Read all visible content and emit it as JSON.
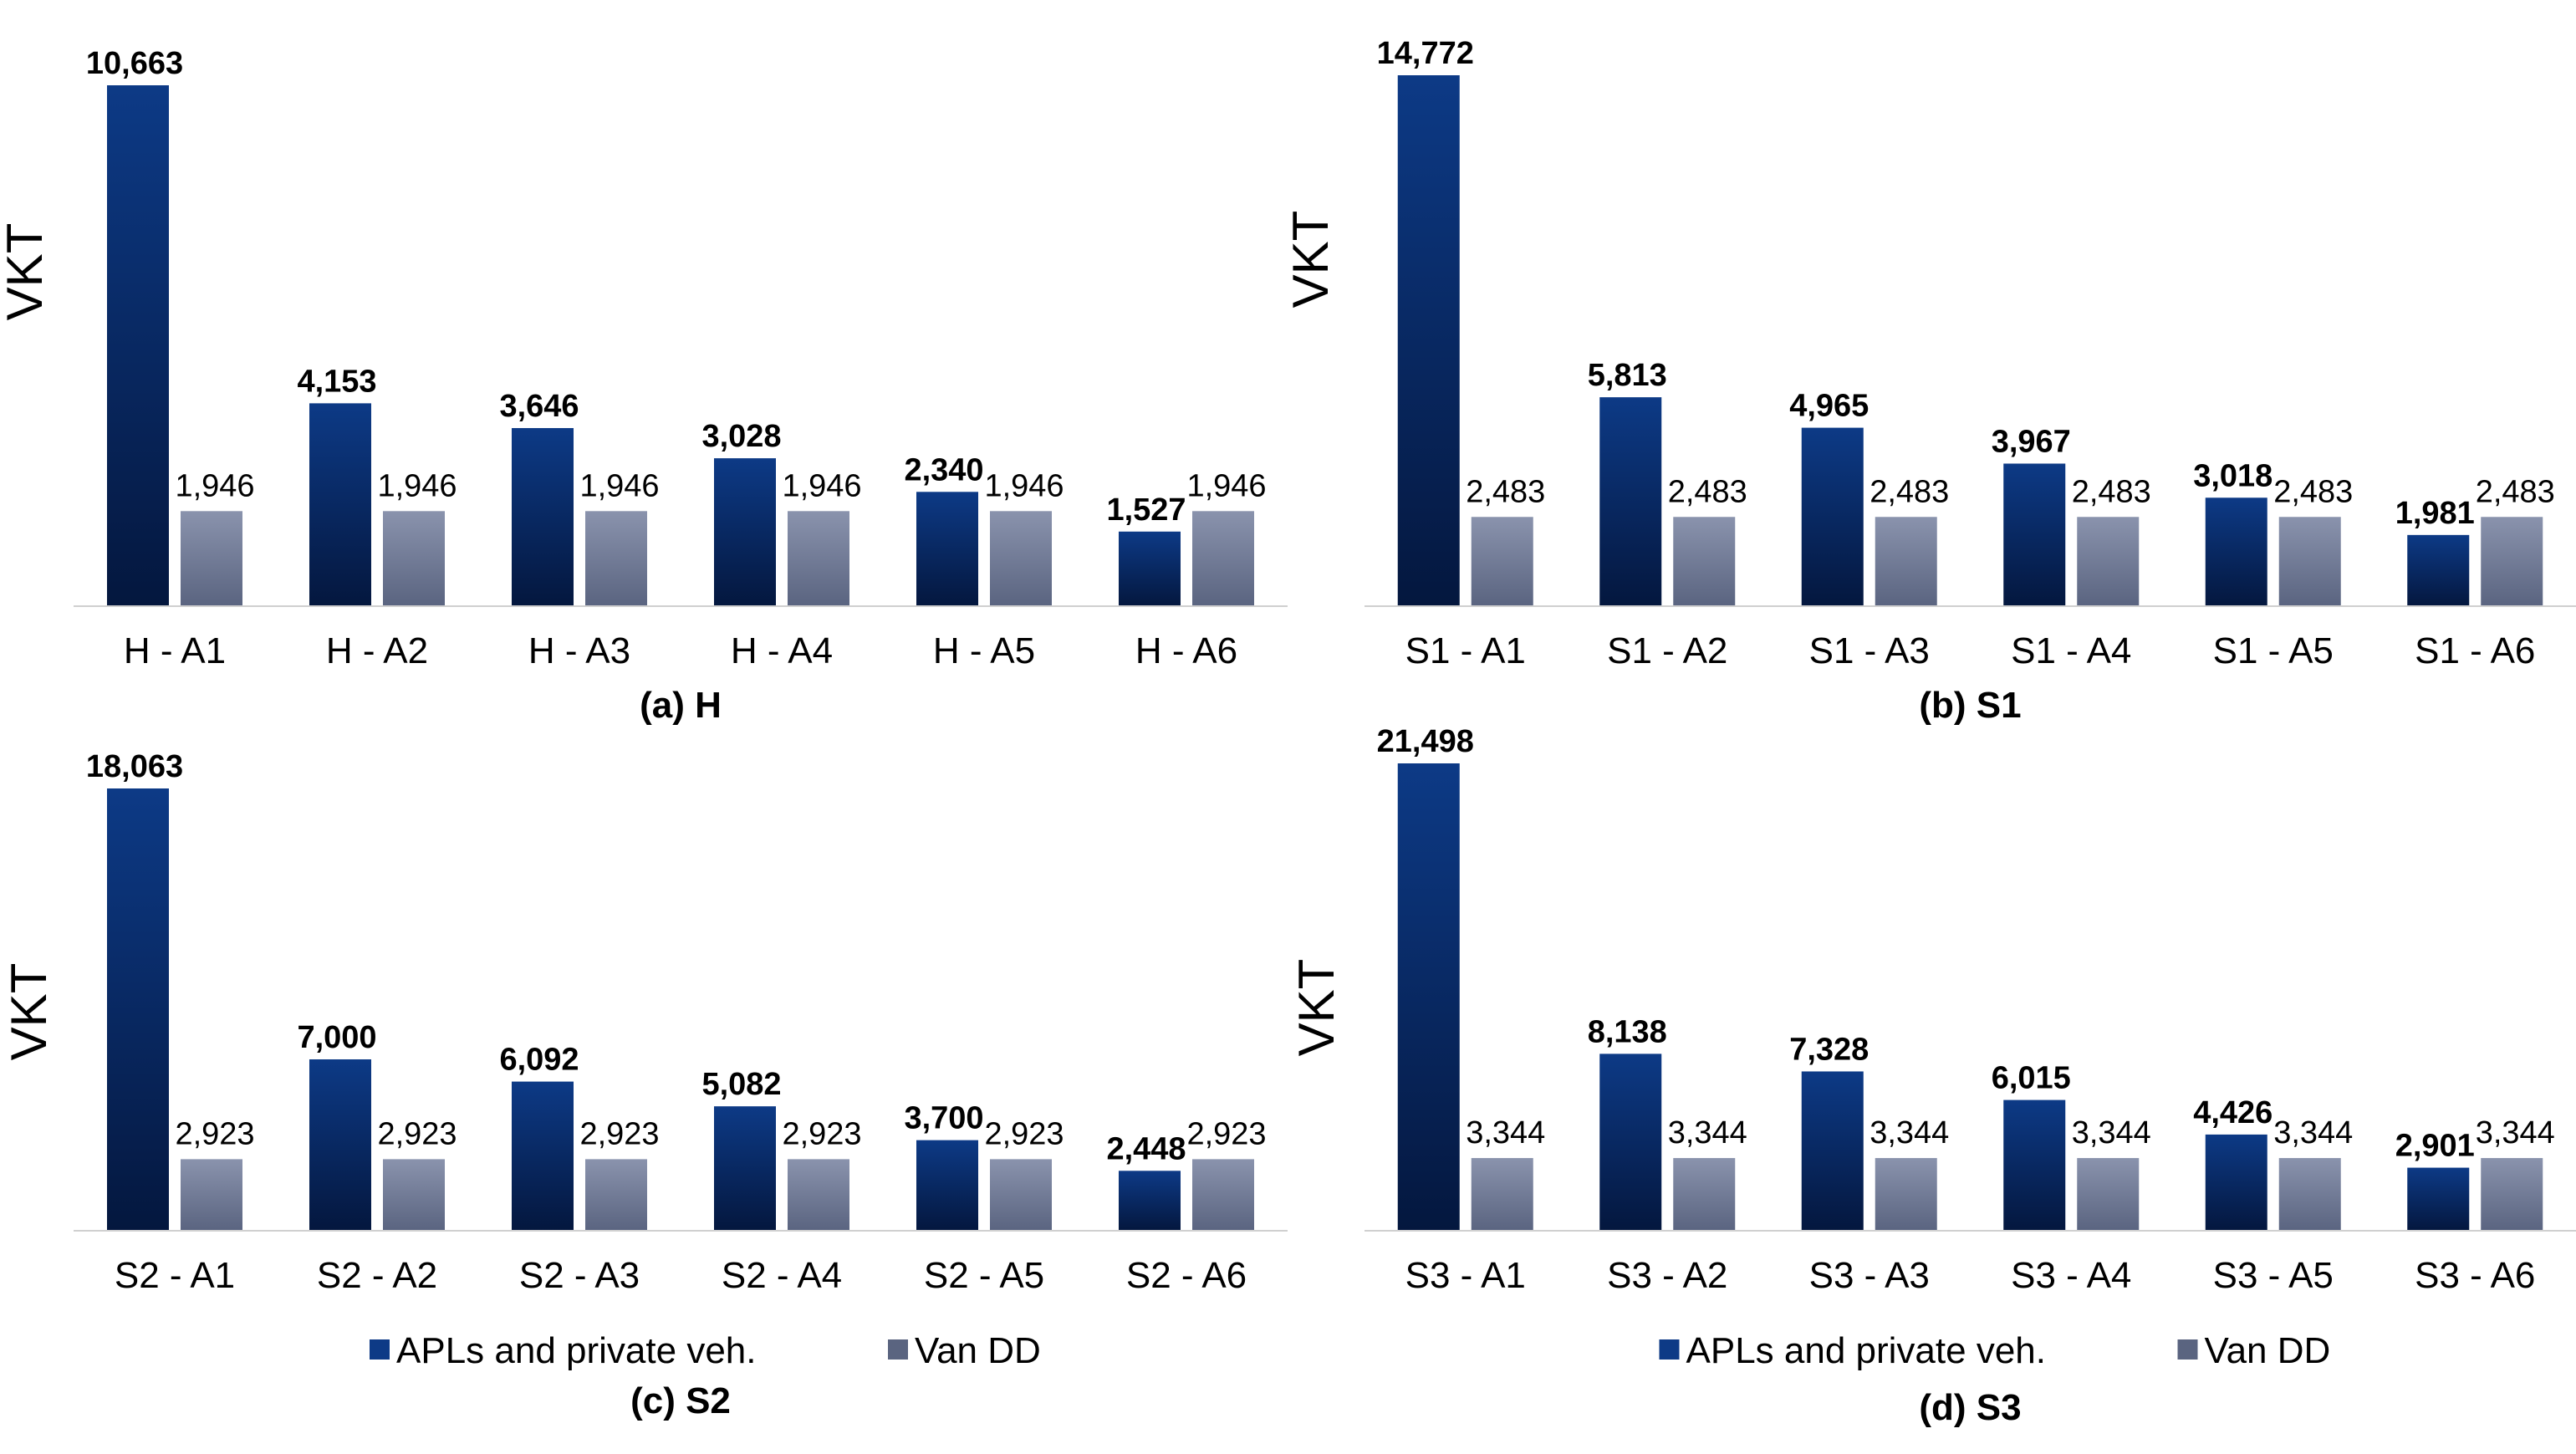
{
  "colors": {
    "apl_top": "#0d3a86",
    "apl_bottom": "#04173e",
    "van_top": "#8a93ad",
    "van_bottom": "#5a6480",
    "axis": "#d0d0d0",
    "text": "#000000"
  },
  "legend": {
    "apl": "APLs and private veh.",
    "van": "Van DD"
  },
  "chart_data": [
    {
      "type": "bar",
      "panel": "(a) H",
      "title": "(a) H",
      "ylabel": "VKT",
      "categories": [
        "H - A1",
        "H - A2",
        "H - A3",
        "H - A4",
        "H - A5",
        "H - A6"
      ],
      "series": [
        {
          "name": "APLs and private veh.",
          "values": [
            10663,
            4153,
            3646,
            3028,
            2340,
            1527
          ],
          "labels": [
            "10,663",
            "4,153",
            "3,646",
            "3,028",
            "2,340",
            "1,527"
          ]
        },
        {
          "name": "Van DD",
          "values": [
            1946,
            1946,
            1946,
            1946,
            1946,
            1946
          ],
          "labels": [
            "1,946",
            "1,946",
            "1,946",
            "1,946",
            "1,946",
            "1,946"
          ]
        }
      ],
      "ylim": [
        0,
        10663
      ],
      "legend": false
    },
    {
      "type": "bar",
      "panel": "(b) S1",
      "title": "(b) S1",
      "ylabel": "VKT",
      "categories": [
        "S1 - A1",
        "S1 - A2",
        "S1 - A3",
        "S1 - A4",
        "S1 - A5",
        "S1 - A6"
      ],
      "series": [
        {
          "name": "APLs and private veh.",
          "values": [
            14772,
            5813,
            4965,
            3967,
            3018,
            1981
          ],
          "labels": [
            "14,772",
            "5,813",
            "4,965",
            "3,967",
            "3,018",
            "1,981"
          ]
        },
        {
          "name": "Van DD",
          "values": [
            2483,
            2483,
            2483,
            2483,
            2483,
            2483
          ],
          "labels": [
            "2,483",
            "2,483",
            "2,483",
            "2,483",
            "2,483",
            "2,483"
          ]
        }
      ],
      "ylim": [
        0,
        14772
      ],
      "legend": false
    },
    {
      "type": "bar",
      "panel": "(c) S2",
      "title": "(c) S2",
      "ylabel": "VKT",
      "categories": [
        "S2 - A1",
        "S2 - A2",
        "S2 - A3",
        "S2 - A4",
        "S2 - A5",
        "S2 - A6"
      ],
      "series": [
        {
          "name": "APLs and private veh.",
          "values": [
            18063,
            7000,
            6092,
            5082,
            3700,
            2448
          ],
          "labels": [
            "18,063",
            "7,000",
            "6,092",
            "5,082",
            "3,700",
            "2,448"
          ]
        },
        {
          "name": "Van DD",
          "values": [
            2923,
            2923,
            2923,
            2923,
            2923,
            2923
          ],
          "labels": [
            "2,923",
            "2,923",
            "2,923",
            "2,923",
            "2,923",
            "2,923"
          ]
        }
      ],
      "ylim": [
        0,
        18063
      ],
      "legend": true
    },
    {
      "type": "bar",
      "panel": "(d) S3",
      "title": "(d) S3",
      "ylabel": "VKT",
      "categories": [
        "S3 - A1",
        "S3 - A2",
        "S3 - A3",
        "S3 - A4",
        "S3 - A5",
        "S3 - A6"
      ],
      "series": [
        {
          "name": "APLs and private veh.",
          "values": [
            21498,
            8138,
            7328,
            6015,
            4426,
            2901
          ],
          "labels": [
            "21,498",
            "8,138",
            "7,328",
            "6,015",
            "4,426",
            "2,901"
          ]
        },
        {
          "name": "Van DD",
          "values": [
            3344,
            3344,
            3344,
            3344,
            3344,
            3344
          ],
          "labels": [
            "3,344",
            "3,344",
            "3,344",
            "3,344",
            "3,344",
            "3,344"
          ]
        }
      ],
      "ylim": [
        0,
        21498
      ],
      "legend": true
    }
  ]
}
